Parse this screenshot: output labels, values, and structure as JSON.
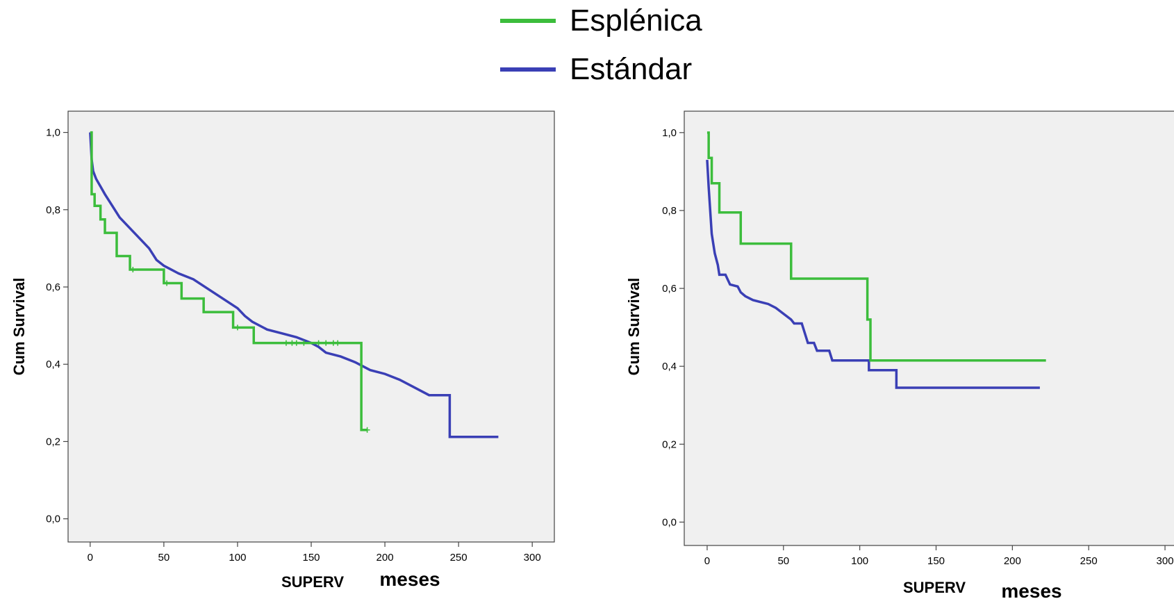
{
  "legend": {
    "items": [
      {
        "label": "Esplénica",
        "color": "#3cbd3c"
      },
      {
        "label": "Estándar",
        "color": "#3a3fb5"
      }
    ]
  },
  "colors": {
    "plot_bg": "#f0f0f0",
    "frame": "#444444",
    "text": "#000000"
  },
  "chart_data": [
    {
      "type": "line",
      "title": "",
      "xlabel": "SUPERV",
      "xlabel_unit": "meses",
      "ylabel": "Cum Survival",
      "xlim": [
        -15,
        315
      ],
      "ylim": [
        -0.06,
        1.055
      ],
      "xticks": [
        0,
        50,
        100,
        150,
        200,
        250,
        300
      ],
      "yticks": [
        0.0,
        0.2,
        0.4,
        0.6,
        0.8,
        1.0
      ],
      "xtick_labels": [
        "0",
        "50",
        "100",
        "150",
        "200",
        "250",
        "300"
      ],
      "ytick_labels": [
        "0,0",
        "0,2",
        "0,4",
        "0,6",
        "0,8",
        "1,0"
      ],
      "grid": false,
      "series": [
        {
          "name": "Estándar",
          "color": "#3a3fb5",
          "step": false,
          "points": [
            [
              0,
              1.0
            ],
            [
              1,
              0.93
            ],
            [
              2,
              0.9
            ],
            [
              4,
              0.88
            ],
            [
              7,
              0.86
            ],
            [
              10,
              0.84
            ],
            [
              15,
              0.81
            ],
            [
              20,
              0.78
            ],
            [
              25,
              0.76
            ],
            [
              30,
              0.74
            ],
            [
              35,
              0.72
            ],
            [
              40,
              0.7
            ],
            [
              45,
              0.67
            ],
            [
              50,
              0.655
            ],
            [
              55,
              0.645
            ],
            [
              60,
              0.635
            ],
            [
              70,
              0.62
            ],
            [
              80,
              0.595
            ],
            [
              90,
              0.57
            ],
            [
              100,
              0.545
            ],
            [
              105,
              0.525
            ],
            [
              110,
              0.51
            ],
            [
              120,
              0.49
            ],
            [
              130,
              0.48
            ],
            [
              140,
              0.47
            ],
            [
              150,
              0.455
            ],
            [
              155,
              0.445
            ],
            [
              160,
              0.43
            ],
            [
              170,
              0.42
            ],
            [
              180,
              0.405
            ],
            [
              190,
              0.385
            ],
            [
              200,
              0.375
            ],
            [
              210,
              0.36
            ],
            [
              220,
              0.34
            ],
            [
              230,
              0.32
            ],
            [
              244,
              0.32
            ],
            [
              244,
              0.212
            ],
            [
              277,
              0.212
            ]
          ]
        },
        {
          "name": "Esplénica",
          "color": "#3cbd3c",
          "step": true,
          "points": [
            [
              0,
              1.0
            ],
            [
              1,
              0.84
            ],
            [
              3,
              0.81
            ],
            [
              7,
              0.775
            ],
            [
              10,
              0.74
            ],
            [
              18,
              0.68
            ],
            [
              27,
              0.645
            ],
            [
              50,
              0.61
            ],
            [
              62,
              0.57
            ],
            [
              77,
              0.535
            ],
            [
              97,
              0.495
            ],
            [
              111,
              0.455
            ],
            [
              184,
              0.455
            ],
            [
              184,
              0.23
            ],
            [
              188,
              0.23
            ]
          ],
          "censor_marks": [
            [
              29,
              0.645
            ],
            [
              52,
              0.61
            ],
            [
              100,
              0.495
            ],
            [
              133,
              0.455
            ],
            [
              137,
              0.455
            ],
            [
              140,
              0.455
            ],
            [
              145,
              0.455
            ],
            [
              155,
              0.455
            ],
            [
              160,
              0.455
            ],
            [
              165,
              0.455
            ],
            [
              168,
              0.455
            ],
            [
              188,
              0.23
            ]
          ]
        }
      ]
    },
    {
      "type": "line",
      "title": "",
      "xlabel": "SUPERV",
      "xlabel_unit": "meses",
      "ylabel": "Cum Survival",
      "xlim": [
        -15,
        315
      ],
      "ylim": [
        -0.06,
        1.055
      ],
      "xticks": [
        0,
        50,
        100,
        150,
        200,
        250,
        300
      ],
      "yticks": [
        0.0,
        0.2,
        0.4,
        0.6,
        0.8,
        1.0
      ],
      "xtick_labels": [
        "0",
        "50",
        "100",
        "150",
        "200",
        "250",
        "300"
      ],
      "ytick_labels": [
        "0,0",
        "0,2",
        "0,4",
        "0,6",
        "0,8",
        "1,0"
      ],
      "grid": false,
      "series": [
        {
          "name": "Estándar",
          "color": "#3a3fb5",
          "step": false,
          "points": [
            [
              0,
              0.93
            ],
            [
              1,
              0.86
            ],
            [
              2,
              0.8
            ],
            [
              3,
              0.74
            ],
            [
              5,
              0.69
            ],
            [
              7,
              0.66
            ],
            [
              8,
              0.635
            ],
            [
              12,
              0.635
            ],
            [
              15,
              0.61
            ],
            [
              20,
              0.605
            ],
            [
              22,
              0.59
            ],
            [
              25,
              0.58
            ],
            [
              30,
              0.57
            ],
            [
              35,
              0.565
            ],
            [
              40,
              0.56
            ],
            [
              45,
              0.55
            ],
            [
              50,
              0.535
            ],
            [
              55,
              0.52
            ],
            [
              57,
              0.51
            ],
            [
              62,
              0.51
            ],
            [
              64,
              0.485
            ],
            [
              66,
              0.46
            ],
            [
              70,
              0.46
            ],
            [
              72,
              0.44
            ],
            [
              80,
              0.44
            ],
            [
              82,
              0.415
            ],
            [
              106,
              0.415
            ],
            [
              106,
              0.39
            ],
            [
              124,
              0.39
            ],
            [
              124,
              0.345
            ],
            [
              218,
              0.345
            ]
          ]
        },
        {
          "name": "Esplénica",
          "color": "#3cbd3c",
          "step": true,
          "points": [
            [
              0,
              1.0
            ],
            [
              1,
              0.935
            ],
            [
              3,
              0.87
            ],
            [
              8,
              0.795
            ],
            [
              22,
              0.715
            ],
            [
              55,
              0.625
            ],
            [
              105,
              0.52
            ],
            [
              107,
              0.415
            ],
            [
              222,
              0.415
            ]
          ]
        }
      ]
    }
  ]
}
